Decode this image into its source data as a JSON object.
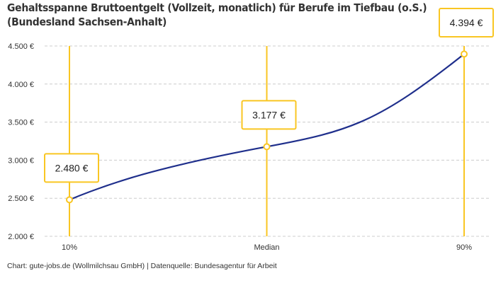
{
  "header": {
    "title_line1": "Gehaltsspanne Bruttoentgelt (Vollzeit, monatlich) für Berufe im Tiefbau (o.S.)",
    "title_line2": "(Bundesland Sachsen-Anhalt)"
  },
  "footer": {
    "source": "Chart: gute-jobs.de (Wollmilchsau GmbH) | Datenquelle: Bundesagentur für Arbeit"
  },
  "colors": {
    "line": "#1f2f8c",
    "accent": "#f9c623",
    "grid": "#cccccc",
    "text": "#333333"
  },
  "chart_data": {
    "type": "line",
    "title": "Gehaltsspanne Bruttoentgelt (Vollzeit, monatlich) für Berufe im Tiefbau (o.S.) (Bundesland Sachsen-Anhalt)",
    "xlabel": "",
    "ylabel": "",
    "categories": [
      "10%",
      "Median",
      "90%"
    ],
    "values": [
      2480,
      3177,
      4394
    ],
    "value_labels": [
      "2.480 €",
      "3.177 €",
      "4.394 €"
    ],
    "ylim": [
      2000,
      4500
    ],
    "yticks": [
      2000,
      2500,
      3000,
      3500,
      4000,
      4500
    ],
    "ytick_labels": [
      "2.000 €",
      "2.500 €",
      "3.000 €",
      "3.500 €",
      "4.000 €",
      "4.500 €"
    ],
    "grid": "horizontal-dashed",
    "legend": "none"
  }
}
